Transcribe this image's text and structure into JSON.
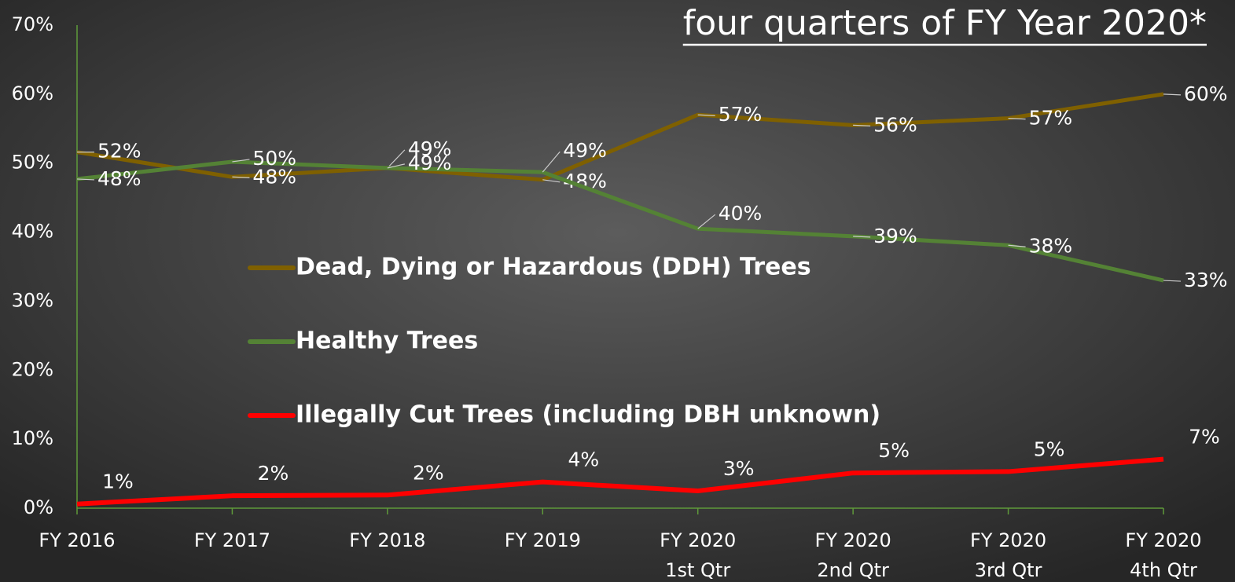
{
  "chart_data": {
    "type": "line",
    "title": "four quarters of FY Year 2020*",
    "categories": [
      [
        "FY 2016"
      ],
      [
        "FY 2017"
      ],
      [
        "FY 2018"
      ],
      [
        "FY 2019"
      ],
      [
        "FY 2020",
        "1st Qtr"
      ],
      [
        "FY 2020",
        "2nd Qtr"
      ],
      [
        "FY 2020",
        "3rd Qtr"
      ],
      [
        "FY 2020",
        "4th Qtr"
      ]
    ],
    "series": [
      {
        "name": "Dead, Dying or Hazardous (DDH) Trees",
        "color": "#7f6000",
        "values": [
          51.6,
          48.0,
          49.3,
          47.6,
          57.0,
          55.5,
          56.5,
          60.0
        ],
        "value_labels": [
          "52%",
          "48%",
          "49%",
          "48%",
          "57%",
          "56%",
          "57%",
          "60%"
        ]
      },
      {
        "name": "Healthy Trees",
        "color": "#548235",
        "values": [
          47.7,
          50.2,
          49.3,
          48.7,
          40.5,
          39.4,
          38.1,
          33.0
        ],
        "value_labels": [
          "48%",
          "50%",
          "49%",
          "49%",
          "40%",
          "39%",
          "38%",
          "33%"
        ]
      },
      {
        "name": "Illegally Cut Trees (including DBH unknown)",
        "color": "#ff0000",
        "values": [
          0.6,
          1.8,
          1.9,
          3.8,
          2.5,
          5.1,
          5.3,
          7.1
        ],
        "value_labels": [
          "1%",
          "2%",
          "2%",
          "4%",
          "3%",
          "5%",
          "5%",
          "7%"
        ]
      }
    ],
    "ylim": [
      0,
      70
    ],
    "yticks": [
      {
        "value": 0,
        "label": "0%"
      },
      {
        "value": 10,
        "label": "10%"
      },
      {
        "value": 20,
        "label": "20%"
      },
      {
        "value": 30,
        "label": "30%"
      },
      {
        "value": 40,
        "label": "40%"
      },
      {
        "value": 50,
        "label": "50%"
      },
      {
        "value": 60,
        "label": "60%"
      },
      {
        "value": 70,
        "label": "70%"
      }
    ],
    "grid": false,
    "legend": "center"
  }
}
